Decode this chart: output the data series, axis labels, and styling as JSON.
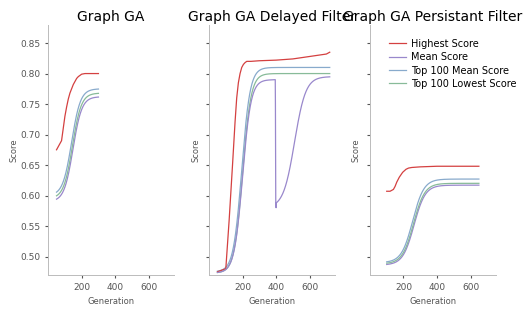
{
  "titles": [
    "Graph GA",
    "Graph GA Delayed Filter",
    "Graph GA Persistant Filter"
  ],
  "xlabel": "Generation",
  "ylabel": "Score",
  "ylim": [
    0.47,
    0.88
  ],
  "xlim": [
    0,
    750
  ],
  "legend_labels": [
    "Highest Score",
    "Mean Score",
    "Top 100 Mean Score",
    "Top 100 Lowest Score"
  ],
  "line_colors": {
    "highest": "#d44040",
    "mean": "#9988cc",
    "top100mean": "#88aacc",
    "top100low": "#88bb99"
  },
  "background_color": "#ffffff",
  "title_fontsize": 10,
  "axis_fontsize": 6,
  "tick_fontsize": 6.5,
  "legend_fontsize": 7
}
